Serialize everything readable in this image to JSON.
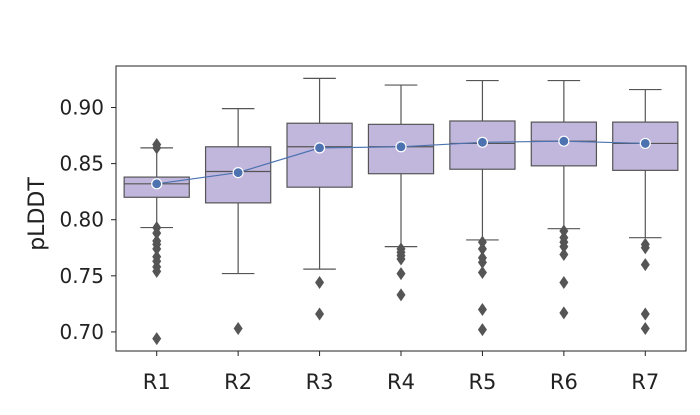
{
  "chart_data": {
    "type": "box",
    "title": "",
    "xlabel": "",
    "ylabel": "pLDDT",
    "ylim": [
      0.683,
      0.937
    ],
    "yticks": [
      0.7,
      0.75,
      0.8,
      0.85,
      0.9
    ],
    "ytick_labels": [
      "0.70",
      "0.75",
      "0.80",
      "0.85",
      "0.90"
    ],
    "grid": false,
    "categories": [
      "R1",
      "R2",
      "R3",
      "R4",
      "R5",
      "R6",
      "R7"
    ],
    "boxes": [
      {
        "whisker_low": 0.793,
        "q1": 0.82,
        "median": 0.832,
        "q3": 0.838,
        "whisker_high": 0.864,
        "mean": 0.832,
        "outliers": [
          0.867,
          0.864,
          0.793,
          0.788,
          0.781,
          0.778,
          0.774,
          0.767,
          0.763,
          0.758,
          0.754,
          0.694
        ]
      },
      {
        "whisker_low": 0.752,
        "q1": 0.815,
        "median": 0.843,
        "q3": 0.865,
        "whisker_high": 0.899,
        "mean": 0.842,
        "outliers": [
          0.703
        ]
      },
      {
        "whisker_low": 0.756,
        "q1": 0.829,
        "median": 0.865,
        "q3": 0.886,
        "whisker_high": 0.926,
        "mean": 0.864,
        "outliers": [
          0.744,
          0.716
        ]
      },
      {
        "whisker_low": 0.776,
        "q1": 0.841,
        "median": 0.865,
        "q3": 0.885,
        "whisker_high": 0.92,
        "mean": 0.865,
        "outliers": [
          0.774,
          0.771,
          0.768,
          0.765,
          0.752,
          0.733
        ]
      },
      {
        "whisker_low": 0.782,
        "q1": 0.845,
        "median": 0.868,
        "q3": 0.888,
        "whisker_high": 0.924,
        "mean": 0.869,
        "outliers": [
          0.78,
          0.774,
          0.766,
          0.762,
          0.753,
          0.72,
          0.702
        ]
      },
      {
        "whisker_low": 0.792,
        "q1": 0.848,
        "median": 0.87,
        "q3": 0.887,
        "whisker_high": 0.924,
        "mean": 0.87,
        "outliers": [
          0.79,
          0.784,
          0.78,
          0.776,
          0.769,
          0.744,
          0.717
        ]
      },
      {
        "whisker_low": 0.784,
        "q1": 0.844,
        "median": 0.868,
        "q3": 0.887,
        "whisker_high": 0.916,
        "mean": 0.868,
        "outliers": [
          0.778,
          0.775,
          0.76,
          0.716,
          0.703
        ]
      }
    ],
    "colors": {
      "box_fill": "#c1b6dc",
      "box_edge": "#555555",
      "mean_line": "#4c72b0",
      "mean_marker": "#4c72b0",
      "mean_marker_edge": "#ffffff",
      "outlier": "#555555",
      "axis": "#222222"
    }
  }
}
